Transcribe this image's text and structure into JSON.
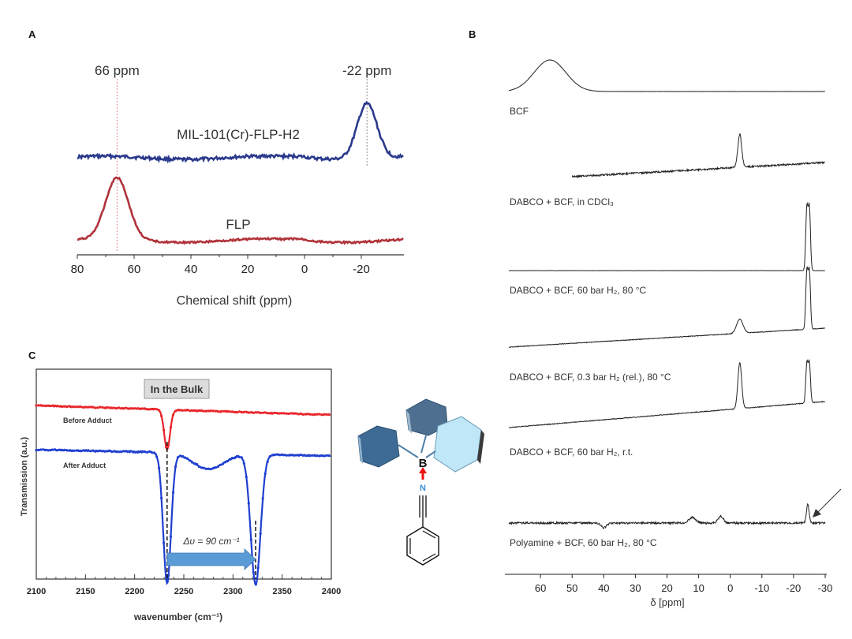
{
  "panels": {
    "a_letter": "A",
    "b_letter": "B",
    "c_letter": "C"
  },
  "panel_c_extra": {
    "inset_label": "In the Bulk",
    "shift_label": "Δυ = 90 cm⁻¹",
    "molecule": {
      "boron": "B",
      "nitrogen": "N"
    }
  },
  "colors": {
    "series_blue": "#2b3a8c",
    "series_red": "#b0333a",
    "ir_red": "#e8262b",
    "ir_blue": "#1f3fcf",
    "arrow_fill": "#5b9bd5",
    "nmr_black": "#222222",
    "inset_box": "#dcdcdc"
  },
  "chart_data": [
    {
      "panel": "A",
      "type": "line",
      "xlabel": "Chemical shift (ppm)",
      "ylabel": "",
      "xlim": [
        80,
        -35
      ],
      "xticks": [
        "80",
        "60",
        "40",
        "20",
        "0",
        "-20"
      ],
      "annotations": [
        "66 ppm",
        "-22 ppm"
      ],
      "series": [
        {
          "name": "MIL-101(Cr)-FLP-H2",
          "color": "#2b3a8c",
          "peaks": [
            {
              "x": -22,
              "height": 1.0,
              "width": 3.5
            }
          ]
        },
        {
          "name": "FLP",
          "color": "#b0333a",
          "peaks": [
            {
              "x": 66,
              "height": 1.0,
              "width": 4
            }
          ]
        }
      ]
    },
    {
      "panel": "B",
      "type": "line",
      "xlabel": "δ [ppm]",
      "ylabel": "",
      "xlim": [
        70,
        -30
      ],
      "xticks": [
        "60",
        "50",
        "40",
        "30",
        "20",
        "10",
        "0",
        "-10",
        "-20",
        "-30"
      ],
      "series": [
        {
          "name": "BCF",
          "peaks": [
            {
              "x": 57,
              "height": 1.0,
              "width": 5
            }
          ]
        },
        {
          "name": "DABCO + BCF, in CDCl₃",
          "peaks": [
            {
              "x": -3,
              "height": 1.0,
              "width": 0.6
            }
          ]
        },
        {
          "name": "DABCO + BCF, 60 bar H₂, 80 °C",
          "peaks": [
            {
              "x": -24.2,
              "height": 1.0,
              "width": 0.35
            },
            {
              "x": -25.0,
              "height": 1.0,
              "width": 0.35
            }
          ]
        },
        {
          "name": "DABCO + BCF, 0.3 bar H₂ (rel.), 80 °C",
          "peaks": [
            {
              "x": -3,
              "height": 0.25,
              "width": 1.0
            },
            {
              "x": -24.2,
              "height": 1.0,
              "width": 0.35
            },
            {
              "x": -25.0,
              "height": 1.0,
              "width": 0.35
            }
          ]
        },
        {
          "name": "DABCO + BCF, 60 bar H₂, r.t.",
          "peaks": [
            {
              "x": -3,
              "height": 1.0,
              "width": 0.6
            },
            {
              "x": -24.2,
              "height": 0.85,
              "width": 0.35
            },
            {
              "x": -25.0,
              "height": 0.85,
              "width": 0.35
            }
          ]
        },
        {
          "name": "Polyamine + BCF, 60 bar H₂, 80 °C",
          "peaks": [
            {
              "x": -24.5,
              "height": 1.0,
              "width": 0.4
            }
          ]
        }
      ]
    },
    {
      "panel": "C",
      "type": "line",
      "xlabel": "wavenumber (cm⁻¹)",
      "ylabel": "Transmission (a.u.)",
      "xlim": [
        2100,
        2400
      ],
      "xticks": [
        "2100",
        "2150",
        "2200",
        "2250",
        "2300",
        "2350",
        "2400"
      ],
      "series": [
        {
          "name": "Before Adduct",
          "color": "#e8262b",
          "dips": [
            {
              "x": 2233,
              "depth": 1.0,
              "width": 3
            }
          ]
        },
        {
          "name": "After Adduct",
          "color": "#1f3fcf",
          "dips": [
            {
              "x": 2233,
              "depth": 1.0,
              "width": 4
            },
            {
              "x": 2323,
              "depth": 1.0,
              "width": 5
            }
          ]
        }
      ]
    }
  ]
}
